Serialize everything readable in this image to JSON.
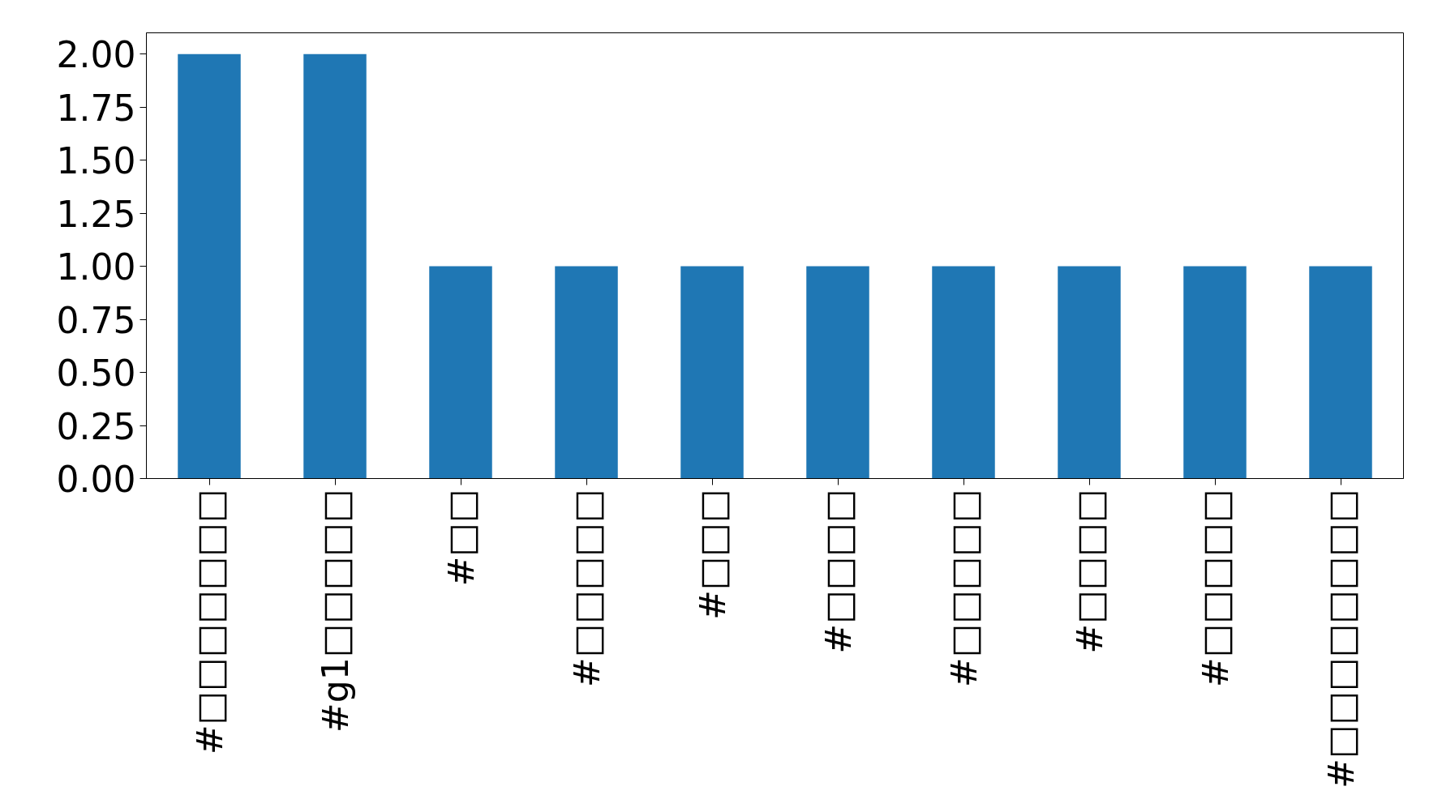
{
  "chart_data": {
    "type": "bar",
    "categories": [
      "#□□□□□□□",
      "#g1□□□□□",
      "#□□",
      "#□□□□□",
      "#□□□",
      "#□□□□",
      "#□□□□□",
      "#□□□□",
      "#□□□□□",
      "#□□□□□□□□"
    ],
    "values": [
      2,
      2,
      1,
      1,
      1,
      1,
      1,
      1,
      1,
      1
    ],
    "color": "#1f77b4",
    "ylim": [
      0,
      2.1
    ],
    "yticks": [
      {
        "value": 0,
        "label": "0.00"
      },
      {
        "value": 0.25,
        "label": "0.25"
      },
      {
        "value": 0.5,
        "label": "0.50"
      },
      {
        "value": 0.75,
        "label": "0.75"
      },
      {
        "value": 1,
        "label": "1.00"
      },
      {
        "value": 1.25,
        "label": "1.25"
      },
      {
        "value": 1.5,
        "label": "1.50"
      },
      {
        "value": 1.75,
        "label": "1.75"
      },
      {
        "value": 2,
        "label": "2.00"
      }
    ],
    "grid": false
  }
}
